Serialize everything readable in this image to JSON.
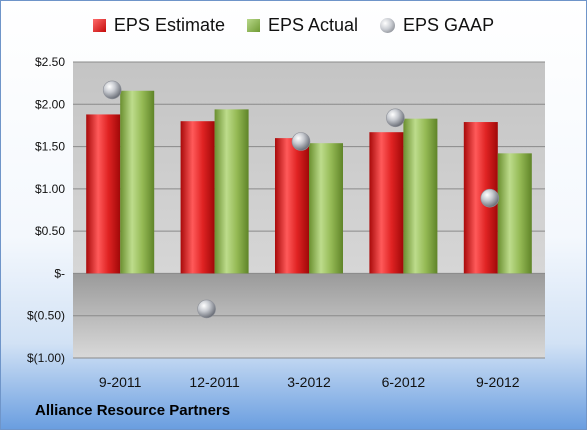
{
  "chart_data": {
    "type": "bar",
    "categories": [
      "9-2011",
      "12-2011",
      "3-2012",
      "6-2012",
      "9-2012"
    ],
    "series": [
      {
        "name": "EPS Estimate",
        "kind": "bar",
        "color": "#d11b1b",
        "values": [
          1.88,
          1.8,
          1.6,
          1.67,
          1.79
        ]
      },
      {
        "name": "EPS Actual",
        "kind": "bar",
        "color": "#8db14b",
        "values": [
          2.16,
          1.94,
          1.54,
          1.83,
          1.42
        ]
      },
      {
        "name": "EPS GAAP",
        "kind": "scatter",
        "color": "#b9bcc3",
        "values": [
          2.17,
          -0.42,
          1.56,
          1.84,
          0.89
        ]
      }
    ],
    "y_ticks": [
      "$(1.00)",
      "$(0.50)",
      "$-",
      "$0.50",
      "$1.00",
      "$1.50",
      "$2.00",
      "$2.50"
    ],
    "y_tick_values": [
      -1.0,
      -0.5,
      0,
      0.5,
      1.0,
      1.5,
      2.0,
      2.5
    ],
    "ylim": [
      -1.0,
      2.5
    ],
    "title": "",
    "xlabel": "",
    "ylabel": "",
    "grid": true,
    "legend_position": "top"
  },
  "footer": {
    "company": "Alliance Resource Partners"
  }
}
